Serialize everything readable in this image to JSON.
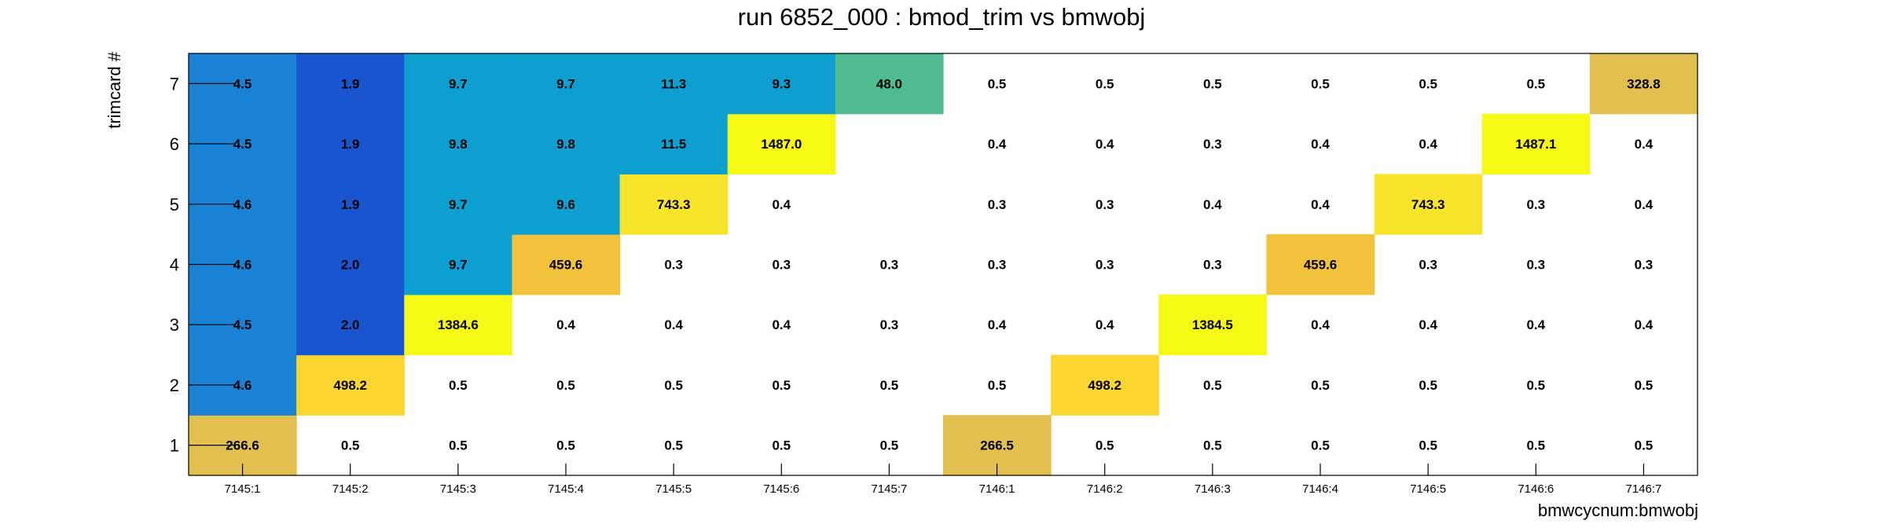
{
  "chart_data": {
    "type": "heatmap",
    "title": "run 6852_000 : bmod_trim vs bmwobj",
    "xlabel": "bmwcycnum:bmwobj",
    "ylabel": "trimcard #",
    "x_categories": [
      "7145:1",
      "7145:2",
      "7145:3",
      "7145:4",
      "7145:5",
      "7145:6",
      "7145:7",
      "7146:1",
      "7146:2",
      "7146:3",
      "7146:4",
      "7146:5",
      "7146:6",
      "7146:7"
    ],
    "y_categories": [
      "1",
      "2",
      "3",
      "4",
      "5",
      "6",
      "7"
    ],
    "values": [
      [
        "266.6",
        "0.5",
        "0.5",
        "0.5",
        "0.5",
        "0.5",
        "0.5",
        "266.5",
        "0.5",
        "0.5",
        "0.5",
        "0.5",
        "0.5",
        "0.5"
      ],
      [
        "4.6",
        "498.2",
        "0.5",
        "0.5",
        "0.5",
        "0.5",
        "0.5",
        "0.5",
        "498.2",
        "0.5",
        "0.5",
        "0.5",
        "0.5",
        "0.5"
      ],
      [
        "4.5",
        "2.0",
        "1384.6",
        "0.4",
        "0.4",
        "0.4",
        "0.3",
        "0.4",
        "0.4",
        "1384.5",
        "0.4",
        "0.4",
        "0.4",
        "0.4"
      ],
      [
        "4.6",
        "2.0",
        "9.7",
        "459.6",
        "0.3",
        "0.3",
        "0.3",
        "0.3",
        "0.3",
        "0.3",
        "459.6",
        "0.3",
        "0.3",
        "0.3"
      ],
      [
        "4.6",
        "1.9",
        "9.7",
        "9.6",
        "743.3",
        "0.4",
        null,
        "0.3",
        "0.3",
        "0.4",
        "0.4",
        "743.3",
        "0.3",
        "0.4"
      ],
      [
        "4.5",
        "1.9",
        "9.8",
        "9.8",
        "11.5",
        "1487.0",
        null,
        "0.4",
        "0.4",
        "0.3",
        "0.4",
        "0.4",
        "1487.1",
        "0.4"
      ],
      [
        "4.5",
        "1.9",
        "9.7",
        "9.7",
        "11.3",
        "9.3",
        "48.0",
        "0.5",
        "0.5",
        "0.5",
        "0.5",
        "0.5",
        "0.5",
        "328.8"
      ]
    ],
    "colors": {
      "c0": "#1a82d4",
      "c1": "#1a55d0",
      "c2": "#0d9fd0",
      "c3": "#4fbb90",
      "c4": "#e2c050",
      "c5": "#f2c23c",
      "c6": "#fbd630",
      "c7": "#f8e42a",
      "c8": "#f6f815",
      "blank": "#ffffff"
    },
    "cell_colors": [
      [
        "c4",
        "blank",
        "blank",
        "blank",
        "blank",
        "blank",
        "blank",
        "c4",
        "blank",
        "blank",
        "blank",
        "blank",
        "blank",
        "blank"
      ],
      [
        "c0",
        "c6",
        "blank",
        "blank",
        "blank",
        "blank",
        "blank",
        "blank",
        "c6",
        "blank",
        "blank",
        "blank",
        "blank",
        "blank"
      ],
      [
        "c0",
        "c1",
        "c8",
        "blank",
        "blank",
        "blank",
        "blank",
        "blank",
        "blank",
        "c8",
        "blank",
        "blank",
        "blank",
        "blank"
      ],
      [
        "c0",
        "c1",
        "c2",
        "c5",
        "blank",
        "blank",
        "blank",
        "blank",
        "blank",
        "blank",
        "c5",
        "blank",
        "blank",
        "blank"
      ],
      [
        "c0",
        "c1",
        "c2",
        "c2",
        "c7",
        "blank",
        "blank",
        "blank",
        "blank",
        "blank",
        "blank",
        "c7",
        "blank",
        "blank"
      ],
      [
        "c0",
        "c1",
        "c2",
        "c2",
        "c2",
        "c8",
        "blank",
        "blank",
        "blank",
        "blank",
        "blank",
        "blank",
        "c8",
        "blank"
      ],
      [
        "c0",
        "c1",
        "c2",
        "c2",
        "c2",
        "c2",
        "c3",
        "blank",
        "blank",
        "blank",
        "blank",
        "blank",
        "blank",
        "c4"
      ]
    ],
    "grid": false,
    "legend": "none"
  }
}
